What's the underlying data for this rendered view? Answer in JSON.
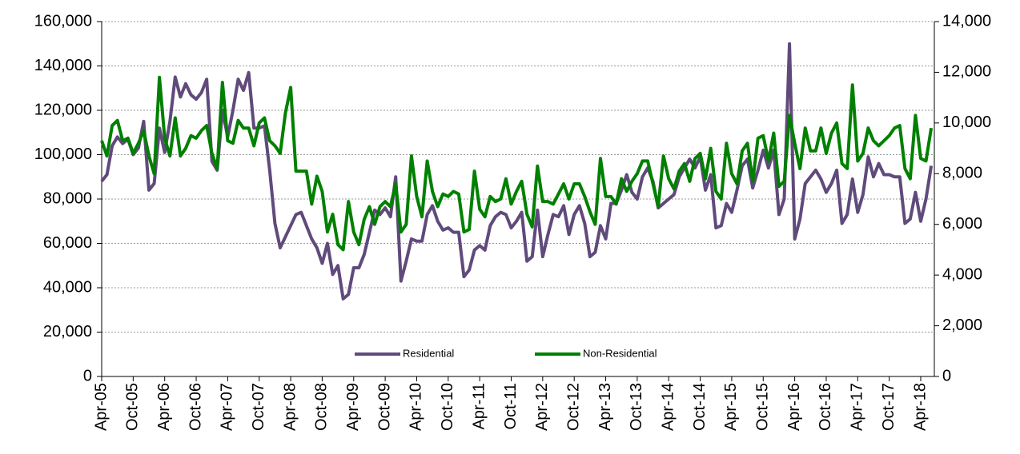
{
  "chart_data": {
    "type": "line",
    "categories": [
      "Apr-05",
      null,
      null,
      null,
      null,
      null,
      "Oct-05",
      null,
      null,
      null,
      null,
      null,
      "Apr-06",
      null,
      null,
      null,
      null,
      null,
      "Oct-06",
      null,
      null,
      null,
      null,
      null,
      "Apr-07",
      null,
      null,
      null,
      null,
      null,
      "Oct-07",
      null,
      null,
      null,
      null,
      null,
      "Apr-08",
      null,
      null,
      null,
      null,
      null,
      "Oct-08",
      null,
      null,
      null,
      null,
      null,
      "Apr-09",
      null,
      null,
      null,
      null,
      null,
      "Oct-09",
      null,
      null,
      null,
      null,
      null,
      "Apr-10",
      null,
      null,
      null,
      null,
      null,
      "Oct-10",
      null,
      null,
      null,
      null,
      null,
      "Apr-11",
      null,
      null,
      null,
      null,
      null,
      "Oct-11",
      null,
      null,
      null,
      null,
      null,
      "Apr-12",
      null,
      null,
      null,
      null,
      null,
      "Oct-12",
      null,
      null,
      null,
      null,
      null,
      "Apr-13",
      null,
      null,
      null,
      null,
      null,
      "Oct-13",
      null,
      null,
      null,
      null,
      null,
      "Apr-14",
      null,
      null,
      null,
      null,
      null,
      "Oct-14",
      null,
      null,
      null,
      null,
      null,
      "Apr-15",
      null,
      null,
      null,
      null,
      null,
      "Oct-15",
      null,
      null,
      null,
      null,
      null,
      "Apr-16",
      null,
      null,
      null,
      null,
      null,
      "Oct-16",
      null,
      null,
      null,
      null,
      null,
      "Apr-17",
      null,
      null,
      null,
      null,
      null,
      "Oct-17",
      null,
      null,
      null,
      null,
      null,
      "Apr-18",
      null,
      null
    ],
    "series": [
      {
        "name": "Residential",
        "color": "#604a7b",
        "axis": "y",
        "values": [
          88000,
          91000,
          104000,
          108000,
          105000,
          107000,
          100000,
          103000,
          115000,
          84000,
          87000,
          112000,
          101000,
          115000,
          135000,
          126000,
          132000,
          127000,
          125000,
          128000,
          134000,
          97000,
          93000,
          120000,
          108000,
          120000,
          134000,
          129000,
          137000,
          112000,
          112000,
          113000,
          93000,
          69000,
          58000,
          63000,
          68000,
          73000,
          74000,
          68000,
          62000,
          58000,
          51000,
          60000,
          46000,
          50000,
          35000,
          37000,
          49000,
          49000,
          55000,
          65000,
          75000,
          73000,
          76000,
          72000,
          90000,
          43000,
          52000,
          62000,
          61000,
          61000,
          73000,
          77000,
          70000,
          66000,
          67000,
          65000,
          65000,
          45000,
          48000,
          57000,
          59000,
          57000,
          68000,
          72000,
          74000,
          73000,
          67000,
          70000,
          74000,
          52000,
          54000,
          75000,
          54000,
          64000,
          73000,
          72000,
          77000,
          64000,
          73000,
          77000,
          69000,
          54000,
          56000,
          68000,
          62000,
          78000,
          78000,
          84000,
          91000,
          83000,
          80000,
          90000,
          94000,
          88000,
          76000,
          78000,
          80000,
          82000,
          90000,
          94000,
          98000,
          94000,
          99000,
          84000,
          91000,
          67000,
          68000,
          78000,
          74000,
          84000,
          95000,
          98000,
          85000,
          93000,
          102000,
          94000,
          102000,
          73000,
          80000,
          150000,
          62000,
          71000,
          87000,
          90000,
          93000,
          89000,
          83000,
          87000,
          93000,
          69000,
          73000,
          89000,
          74000,
          82000,
          99000,
          90000,
          96000,
          91000,
          91000,
          90000,
          90000,
          69000,
          71000,
          83000,
          70000,
          80000,
          95000
        ]
      },
      {
        "name": "Non-Residential",
        "color": "#008000",
        "axis": "y2",
        "values": [
          9300,
          8700,
          9900,
          10100,
          9300,
          9400,
          8800,
          9200,
          9700,
          8700,
          8000,
          11800,
          9400,
          8700,
          10200,
          8700,
          9000,
          9500,
          9400,
          9700,
          9900,
          8800,
          8200,
          11600,
          9300,
          9200,
          10100,
          9800,
          9800,
          9100,
          10000,
          10200,
          9300,
          9100,
          8800,
          10400,
          11400,
          8100,
          8100,
          8100,
          6800,
          7900,
          7300,
          5700,
          6400,
          5200,
          5000,
          6900,
          5700,
          5200,
          6200,
          6700,
          6000,
          6700,
          6900,
          6700,
          7600,
          5700,
          6000,
          8700,
          7100,
          6300,
          8500,
          7300,
          6700,
          7200,
          7100,
          7300,
          7200,
          5700,
          5800,
          8100,
          6600,
          6300,
          7100,
          6900,
          7000,
          7800,
          6800,
          7300,
          7700,
          6400,
          5900,
          8300,
          6900,
          6900,
          6800,
          7200,
          7600,
          7000,
          7600,
          7600,
          7100,
          6500,
          6000,
          8600,
          7100,
          7100,
          6800,
          7800,
          7300,
          7700,
          8000,
          8500,
          8500,
          7600,
          6700,
          8700,
          7800,
          7400,
          8100,
          8400,
          7700,
          8600,
          8800,
          7800,
          9000,
          7300,
          7000,
          9200,
          8000,
          7600,
          8900,
          9200,
          7700,
          9400,
          9500,
          8500,
          9600,
          7500,
          7700,
          10300,
          9200,
          8200,
          9800,
          8900,
          8900,
          9800,
          8800,
          9600,
          10000,
          8400,
          8200,
          11500,
          8500,
          8800,
          9800,
          9300,
          9100,
          9300,
          9500,
          9800,
          9900,
          8200,
          7800,
          10300,
          8600,
          8500,
          9800
        ]
      }
    ],
    "ylim": [
      0,
      160000
    ],
    "yticks": [
      0,
      {
        "value": 20000,
        "label": "20,000"
      },
      {
        "value": 40000,
        "label": "40,000"
      },
      {
        "value": 60000,
        "label": "60,000"
      },
      {
        "value": 80000,
        "label": "80,000"
      },
      {
        "value": 100000,
        "label": "100,000"
      },
      {
        "value": 120000,
        "label": "120,000"
      },
      {
        "value": 140000,
        "label": "140,000"
      },
      {
        "value": 160000,
        "label": "160,000"
      }
    ],
    "y2lim": [
      0,
      14000
    ],
    "y2ticks": [
      0,
      {
        "value": 2000,
        "label": "2,000"
      },
      {
        "value": 4000,
        "label": "4,000"
      },
      {
        "value": 6000,
        "label": "6,000"
      },
      {
        "value": 8000,
        "label": "8,000"
      },
      {
        "value": 10000,
        "label": "10,000"
      },
      {
        "value": 12000,
        "label": "12,000"
      },
      {
        "value": 14000,
        "label": "14,000"
      }
    ],
    "grid": true,
    "legend": "bottom"
  }
}
